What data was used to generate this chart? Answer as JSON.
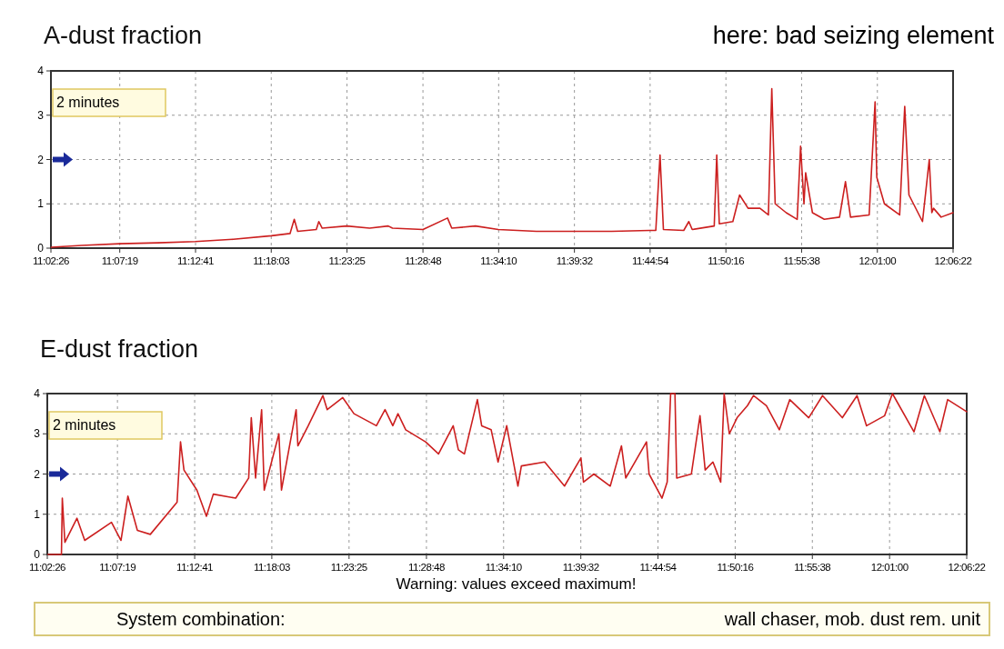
{
  "chart_data": [
    {
      "type": "line",
      "title": "A-dust fraction",
      "annotations": [
        "2 minutes",
        "here: bad seizing element"
      ],
      "xlim": [
        11.0406,
        12.1061
      ],
      "xticks": [
        {
          "value": 11.0406,
          "label": "11:02:26"
        },
        {
          "value": 11.1219,
          "label": "11:07:19"
        },
        {
          "value": 11.2114,
          "label": "11:12:41"
        },
        {
          "value": 11.3008,
          "label": "11:18:03"
        },
        {
          "value": 11.3903,
          "label": "11:23:25"
        },
        {
          "value": 11.48,
          "label": "11:28:48"
        },
        {
          "value": 11.5694,
          "label": "11:34:10"
        },
        {
          "value": 11.6589,
          "label": "11:39:32"
        },
        {
          "value": 11.7483,
          "label": "11:44:54"
        },
        {
          "value": 11.8378,
          "label": "11:50:16"
        },
        {
          "value": 11.9272,
          "label": "11:55:38"
        },
        {
          "value": 12.0167,
          "label": "12:01:00"
        },
        {
          "value": 12.1061,
          "label": "12:06:22"
        }
      ],
      "ylim": [
        0,
        4
      ],
      "yticks": [
        0,
        1,
        2,
        3,
        4
      ],
      "grid": true,
      "marker": "none",
      "line_style": "solid",
      "series": [
        {
          "color": "#cc1f1f",
          "x": [
            11.041,
            11.077,
            11.122,
            11.167,
            11.211,
            11.256,
            11.301,
            11.323,
            11.328,
            11.332,
            11.354,
            11.357,
            11.361,
            11.39,
            11.417,
            11.439,
            11.444,
            11.48,
            11.509,
            11.514,
            11.542,
            11.569,
            11.614,
            11.659,
            11.703,
            11.748,
            11.755,
            11.76,
            11.764,
            11.788,
            11.794,
            11.798,
            11.824,
            11.827,
            11.83,
            11.846,
            11.854,
            11.864,
            11.878,
            11.888,
            11.892,
            11.896,
            11.909,
            11.922,
            11.926,
            11.93,
            11.932,
            11.94,
            11.954,
            11.972,
            11.979,
            11.985,
            12.007,
            12.014,
            12.016,
            12.025,
            12.043,
            12.049,
            12.054,
            12.07,
            12.078,
            12.081,
            12.083,
            12.092,
            12.106
          ],
          "values": [
            0.02,
            0.06,
            0.1,
            0.12,
            0.15,
            0.2,
            0.28,
            0.33,
            0.65,
            0.38,
            0.42,
            0.6,
            0.45,
            0.5,
            0.45,
            0.5,
            0.45,
            0.42,
            0.68,
            0.45,
            0.5,
            0.42,
            0.38,
            0.38,
            0.38,
            0.4,
            0.4,
            2.1,
            0.42,
            0.4,
            0.6,
            0.42,
            0.5,
            2.1,
            0.55,
            0.6,
            1.2,
            0.9,
            0.9,
            0.75,
            3.6,
            1.0,
            0.8,
            0.65,
            2.3,
            1.0,
            1.7,
            0.8,
            0.65,
            0.7,
            1.5,
            0.7,
            0.75,
            3.3,
            1.6,
            1.0,
            0.75,
            3.2,
            1.2,
            0.6,
            2.0,
            0.8,
            0.9,
            0.7,
            0.8
          ]
        }
      ]
    },
    {
      "type": "line",
      "title": "E-dust fraction",
      "annotations": [
        "2 minutes",
        "Warning: values exceed maximum!",
        "System combination:",
        "wall chaser, mob. dust rem. unit"
      ],
      "xlim": [
        11.0406,
        12.1061
      ],
      "xticks": [
        {
          "value": 11.0406,
          "label": "11:02:26"
        },
        {
          "value": 11.1219,
          "label": "11:07:19"
        },
        {
          "value": 11.2114,
          "label": "11:12:41"
        },
        {
          "value": 11.3008,
          "label": "11:18:03"
        },
        {
          "value": 11.3903,
          "label": "11:23:25"
        },
        {
          "value": 11.48,
          "label": "11:28:48"
        },
        {
          "value": 11.5694,
          "label": "11:34:10"
        },
        {
          "value": 11.6589,
          "label": "11:39:32"
        },
        {
          "value": 11.7483,
          "label": "11:44:54"
        },
        {
          "value": 11.8378,
          "label": "11:50:16"
        },
        {
          "value": 11.9272,
          "label": "11:55:38"
        },
        {
          "value": 12.0167,
          "label": "12:01:00"
        },
        {
          "value": 12.1061,
          "label": "12:06:22"
        }
      ],
      "ylim": [
        0,
        4
      ],
      "yticks": [
        0,
        1,
        2,
        3,
        4
      ],
      "grid": true,
      "marker": "none",
      "line_style": "solid",
      "series": [
        {
          "color": "#cc1f1f",
          "x": [
            11.041,
            11.057,
            11.058,
            11.061,
            11.075,
            11.084,
            11.115,
            11.126,
            11.134,
            11.145,
            11.16,
            11.191,
            11.195,
            11.199,
            11.214,
            11.225,
            11.233,
            11.259,
            11.274,
            11.277,
            11.282,
            11.289,
            11.292,
            11.309,
            11.312,
            11.329,
            11.331,
            11.343,
            11.36,
            11.365,
            11.383,
            11.396,
            11.422,
            11.432,
            11.441,
            11.447,
            11.456,
            11.479,
            11.494,
            11.511,
            11.517,
            11.524,
            11.539,
            11.544,
            11.555,
            11.563,
            11.573,
            11.586,
            11.59,
            11.617,
            11.64,
            11.659,
            11.662,
            11.674,
            11.693,
            11.706,
            11.711,
            11.735,
            11.738,
            11.753,
            11.759,
            11.763,
            11.768,
            11.77,
            11.787,
            11.797,
            11.803,
            11.812,
            11.821,
            11.825,
            11.831,
            11.84,
            11.852,
            11.859,
            11.874,
            11.889,
            11.901,
            11.923,
            11.939,
            11.962,
            11.979,
            11.99,
            12.011,
            12.02,
            12.045,
            12.057,
            12.075,
            12.084,
            12.106
          ],
          "values": [
            0,
            0,
            1.4,
            0.3,
            0.9,
            0.35,
            0.8,
            0.35,
            1.45,
            0.6,
            0.5,
            1.3,
            2.8,
            2.1,
            1.6,
            0.95,
            1.5,
            1.4,
            1.9,
            3.4,
            1.9,
            3.6,
            1.6,
            3.0,
            1.6,
            3.6,
            2.7,
            3.2,
            3.95,
            3.6,
            3.9,
            3.5,
            3.2,
            3.6,
            3.2,
            3.5,
            3.1,
            2.8,
            2.5,
            3.2,
            2.6,
            2.5,
            3.85,
            3.2,
            3.1,
            2.3,
            3.2,
            1.7,
            2.2,
            2.3,
            1.7,
            2.4,
            1.8,
            2.0,
            1.7,
            2.7,
            1.9,
            2.8,
            2.0,
            1.4,
            1.8,
            4.0,
            4.0,
            1.9,
            2.0,
            3.45,
            2.1,
            2.3,
            1.8,
            4.0,
            3.0,
            3.4,
            3.7,
            3.95,
            3.7,
            3.1,
            3.85,
            3.4,
            3.95,
            3.4,
            3.95,
            3.2,
            3.45,
            4.0,
            3.05,
            3.95,
            3.05,
            3.85,
            3.55
          ]
        }
      ]
    }
  ]
}
